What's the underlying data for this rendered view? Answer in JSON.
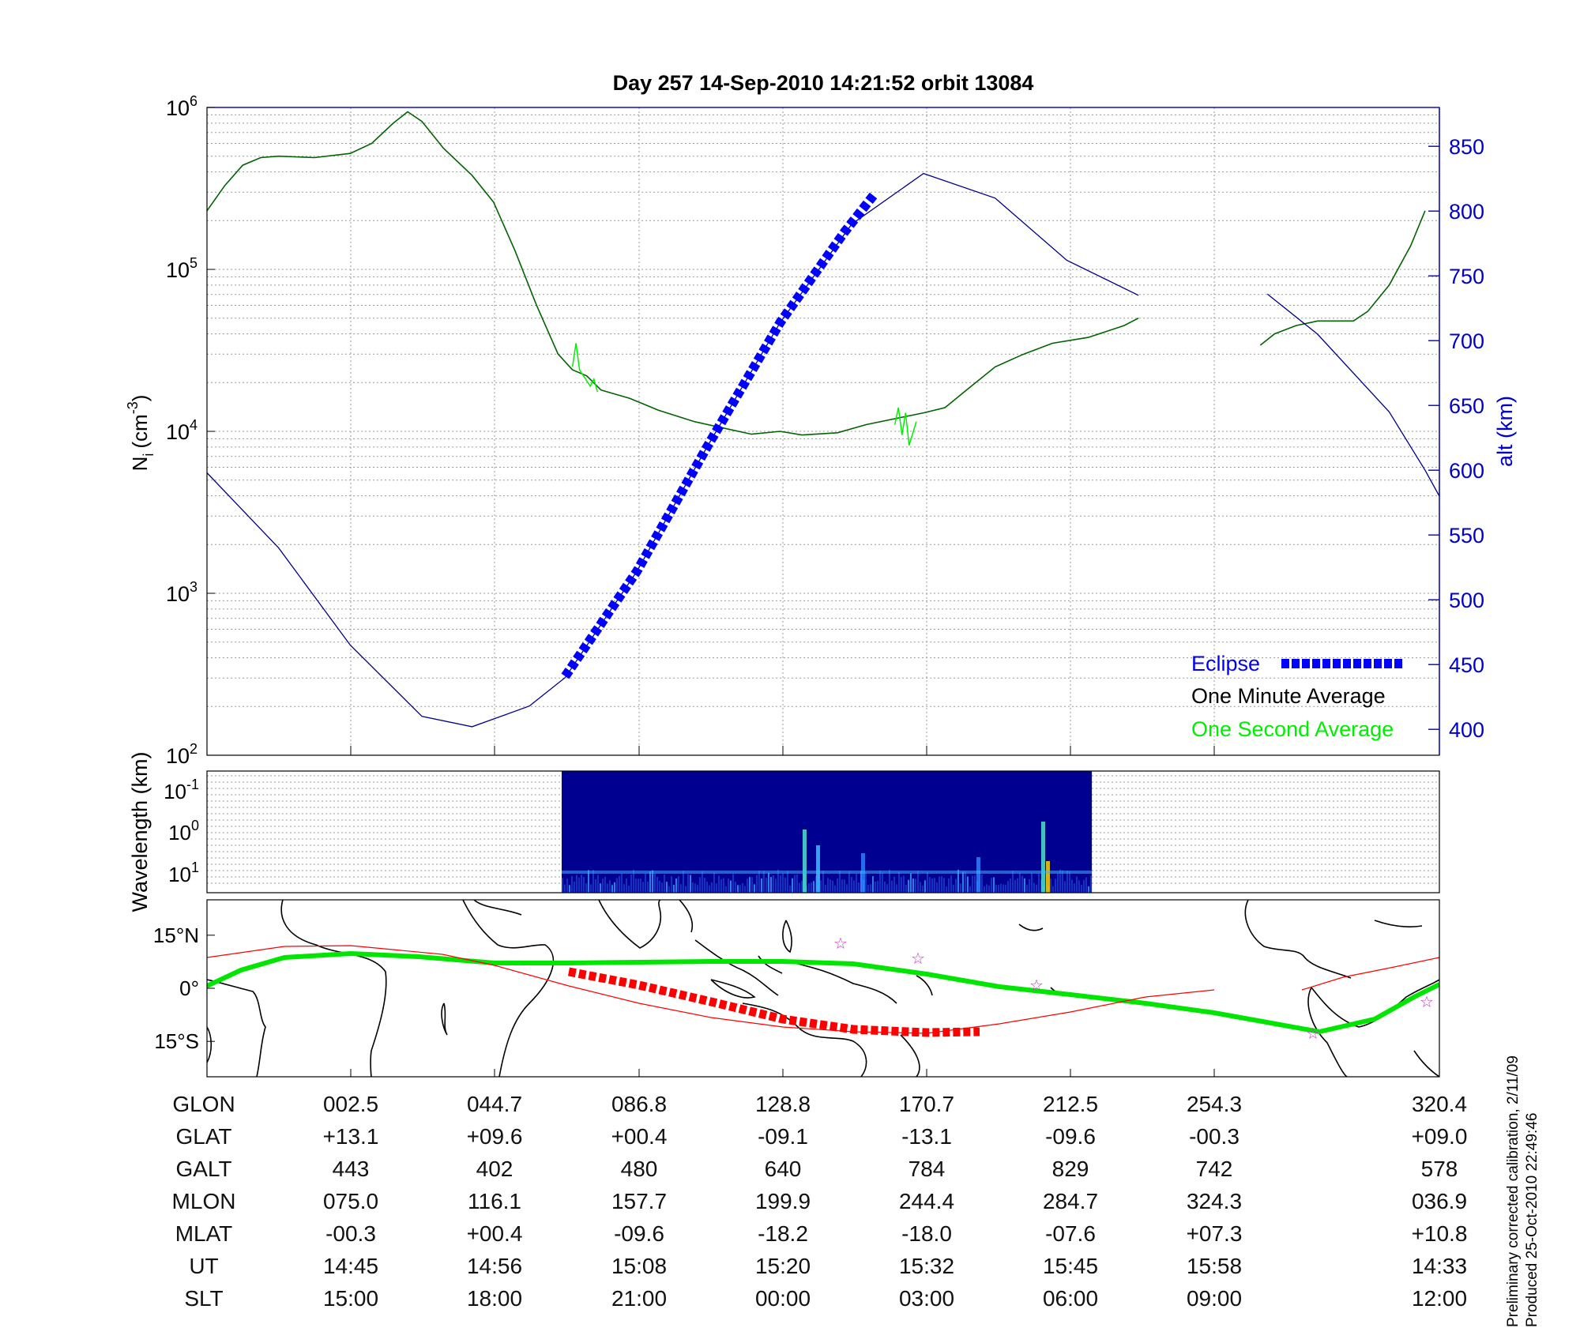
{
  "header": {
    "title": "Day 257  14-Sep-2010 14:21:52   orbit 13084"
  },
  "colors": {
    "density_minute": "#006400",
    "density_second": "#00ee00",
    "altitude": "#00008b",
    "eclipse": "#0000ff",
    "track": "#00e600",
    "track_red": "#ff0000",
    "star": "#cc33cc",
    "axis_right": "#0000cc",
    "spectrogram_bg": "#000090"
  },
  "chart_data": [
    {
      "type": "line",
      "panel": "density",
      "title": "Day 257  14-Sep-2010 14:21:52   orbit 13084",
      "ylabel": "N_i (cm^-3)",
      "ylabel_main": "N",
      "ylabel_sub": "i",
      "ylabel_units": "(cm",
      "ylabel_exp": "-3",
      "ylabel_close": ")",
      "yscale": "log",
      "ylim": [
        100,
        1000000
      ],
      "yticks": [
        {
          "base": "10",
          "exp": "2",
          "value": 100
        },
        {
          "base": "10",
          "exp": "3",
          "value": 1000
        },
        {
          "base": "10",
          "exp": "4",
          "value": 10000
        },
        {
          "base": "10",
          "exp": "5",
          "value": 100000
        },
        {
          "base": "10",
          "exp": "6",
          "value": 1000000
        }
      ],
      "y2label": "alt (km)",
      "y2lim": [
        380,
        880
      ],
      "y2ticks": [
        400,
        450,
        500,
        550,
        600,
        650,
        700,
        750,
        800,
        850
      ],
      "grid": true,
      "legend_position": "bottom-right",
      "legend": [
        {
          "label": "Eclipse",
          "color": "#0000ff"
        },
        {
          "label": "One Minute Average",
          "color": "#000000"
        },
        {
          "label": "One Second Average",
          "color": "#00ee00"
        }
      ],
      "x_index_range": [
        0,
        8.6
      ],
      "series": [
        {
          "name": "One Minute Average",
          "axis": "left",
          "segments": [
            [
              [
                0,
                230000
              ],
              [
                0.25,
                330000
              ],
              [
                0.5,
                440000
              ],
              [
                0.75,
                490000
              ],
              [
                1,
                500000
              ],
              [
                1.5,
                490000
              ],
              [
                2,
                520000
              ],
              [
                2.3,
                600000
              ],
              [
                2.6,
                800000
              ],
              [
                2.8,
                940000
              ],
              [
                3.0,
                820000
              ],
              [
                3.3,
                560000
              ],
              [
                3.7,
                380000
              ],
              [
                4.0,
                260000
              ],
              [
                4.3,
                130000
              ],
              [
                4.6,
                60000
              ],
              [
                4.9,
                30000
              ],
              [
                5.1,
                24000
              ],
              [
                5.3,
                22000
              ],
              [
                5.5,
                18000
              ],
              [
                5.9,
                16000
              ],
              [
                6.3,
                13500
              ],
              [
                6.8,
                11500
              ],
              [
                7.2,
                10500
              ],
              [
                7.6,
                9600
              ],
              [
                8.0,
                10000
              ],
              [
                8.3,
                9500
              ],
              [
                8.8,
                9800
              ],
              [
                9.2,
                11000
              ],
              [
                10.0,
                13000
              ],
              [
                10.3,
                14000
              ],
              [
                10.6,
                18000
              ],
              [
                11.0,
                25000
              ],
              [
                11.4,
                30000
              ],
              [
                11.8,
                35000
              ],
              [
                12.3,
                38000
              ],
              [
                12.8,
                45000
              ],
              [
                13.0,
                50000
              ]
            ],
            [
              [
                14.7,
                34000
              ],
              [
                14.9,
                40000
              ],
              [
                15.2,
                45000
              ],
              [
                15.5,
                48000
              ],
              [
                16.0,
                48000
              ],
              [
                16.2,
                55000
              ],
              [
                16.5,
                80000
              ],
              [
                16.8,
                140000
              ],
              [
                17.0,
                230000
              ]
            ]
          ]
        },
        {
          "name": "One Second Average",
          "axis": "left",
          "segments": [
            [
              [
                5.1,
                25000
              ],
              [
                5.15,
                35000
              ],
              [
                5.2,
                24000
              ],
              [
                5.35,
                19000
              ],
              [
                5.4,
                21000
              ],
              [
                5.45,
                17500
              ]
            ],
            [
              [
                9.6,
                11000
              ],
              [
                9.65,
                14000
              ],
              [
                9.7,
                9500
              ],
              [
                9.75,
                13000
              ],
              [
                9.8,
                8200
              ],
              [
                9.9,
                11500
              ]
            ]
          ]
        },
        {
          "name": "Altitude",
          "axis": "right",
          "segments": [
            [
              [
                0,
                598
              ],
              [
                1,
                540
              ],
              [
                2,
                465
              ],
              [
                3,
                410
              ],
              [
                3.7,
                402
              ],
              [
                4.5,
                418
              ],
              [
                5,
                440
              ],
              [
                6,
                522
              ],
              [
                7,
                620
              ],
              [
                8,
                714
              ],
              [
                9,
                790
              ],
              [
                10,
                829
              ],
              [
                11,
                810
              ],
              [
                12,
                762
              ],
              [
                13,
                735
              ]
            ],
            [
              [
                14.8,
                736
              ],
              [
                15.5,
                705
              ],
              [
                16.5,
                645
              ],
              [
                17,
                600
              ],
              [
                17.2,
                580
              ]
            ]
          ]
        },
        {
          "name": "Eclipse",
          "axis": "right",
          "segments": [
            [
              [
                5.0,
                441
              ],
              [
                6,
                522
              ],
              [
                7,
                620
              ],
              [
                8,
                714
              ],
              [
                8.9,
                784
              ],
              [
                9.3,
                812
              ]
            ]
          ]
        }
      ]
    },
    {
      "type": "heatmap",
      "panel": "spectrogram",
      "ylabel": "Wavelength (km)",
      "yticks": [
        {
          "base": "10",
          "exp": "-1"
        },
        {
          "base": "10",
          "exp": "0"
        },
        {
          "base": "10",
          "exp": "1"
        }
      ],
      "x_start_index": 4.95,
      "x_end_index": 12.35
    },
    {
      "type": "map",
      "panel": "groundtrack",
      "yticks": [
        "15°N",
        "0°",
        "15°S"
      ],
      "ylim": [
        -25,
        25
      ]
    }
  ],
  "table": {
    "row_labels": [
      "GLON",
      "GLAT",
      "GALT",
      "MLON",
      "MLAT",
      "UT",
      "SLT"
    ],
    "columns": [
      [
        "002.5",
        "+13.1",
        "443",
        "075.0",
        "-00.3",
        "14:45",
        "15:00"
      ],
      [
        "044.7",
        "+09.6",
        "402",
        "116.1",
        "+00.4",
        "14:56",
        "18:00"
      ],
      [
        "086.8",
        "+00.4",
        "480",
        "157.7",
        "-09.6",
        "15:08",
        "21:00"
      ],
      [
        "128.8",
        "-09.1",
        "640",
        "199.9",
        "-18.2",
        "15:20",
        "00:00"
      ],
      [
        "170.7",
        "-13.1",
        "784",
        "244.4",
        "-18.0",
        "15:32",
        "03:00"
      ],
      [
        "212.5",
        "-09.6",
        "829",
        "284.7",
        "-07.6",
        "15:45",
        "06:00"
      ],
      [
        "254.3",
        "-00.3",
        "742",
        "324.3",
        "+07.3",
        "15:58",
        "09:00"
      ],
      [
        "320.4",
        "+09.0",
        "578",
        "036.9",
        "+10.8",
        "14:33",
        "12:00"
      ]
    ]
  },
  "credits": {
    "line1": "Preliminary corrected calibration, 2/11/09",
    "line2": "Produced 25-Oct-2010 22:49:46"
  }
}
